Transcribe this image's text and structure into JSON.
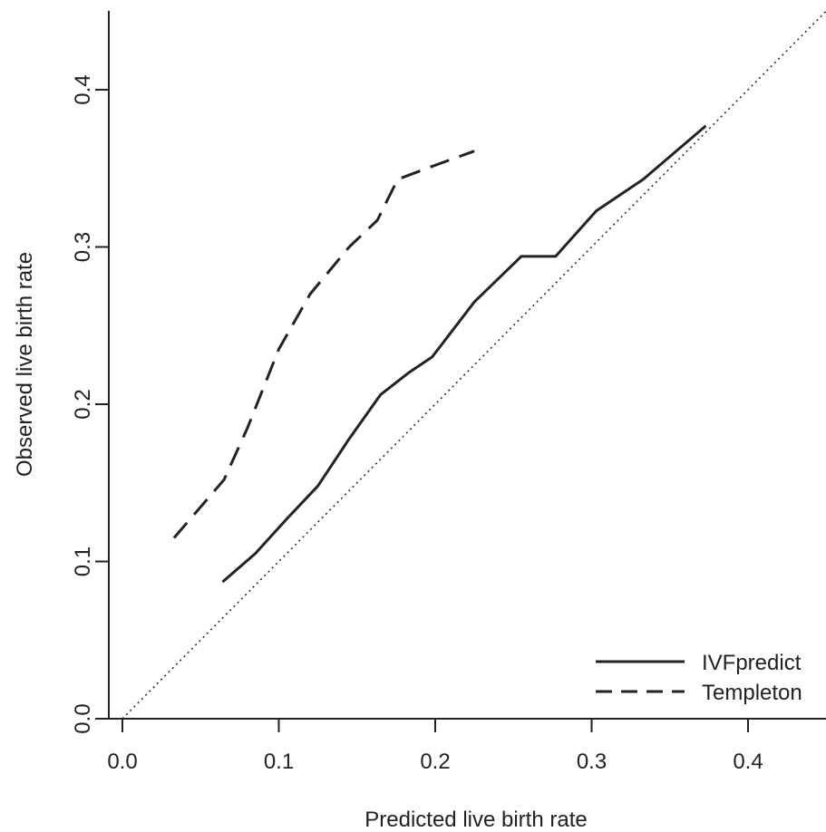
{
  "chart_data": {
    "type": "line",
    "title": "",
    "xlabel": "Predicted live birth rate",
    "ylabel": "Observed live birth rate",
    "xlim": [
      0,
      0.45
    ],
    "ylim": [
      0,
      0.45
    ],
    "xticks": [
      "0.0",
      "0.1",
      "0.2",
      "0.3",
      "0.4"
    ],
    "yticks": [
      "0.0",
      "0.1",
      "0.2",
      "0.3",
      "0.4"
    ],
    "legend_position": "bottom-right",
    "reference_line": {
      "style": "dotted",
      "from": [
        0,
        0
      ],
      "to": [
        0.45,
        0.45
      ]
    },
    "series": [
      {
        "name": "IVFpredict",
        "style": "solid",
        "color": "#222222",
        "x": [
          0.064,
          0.085,
          0.105,
          0.125,
          0.145,
          0.165,
          0.183,
          0.198,
          0.225,
          0.255,
          0.277,
          0.303,
          0.333,
          0.373
        ],
        "y": [
          0.087,
          0.105,
          0.127,
          0.148,
          0.178,
          0.206,
          0.22,
          0.23,
          0.265,
          0.294,
          0.294,
          0.323,
          0.343,
          0.377
        ]
      },
      {
        "name": "Templeton",
        "style": "dashed",
        "color": "#222222",
        "x": [
          0.033,
          0.065,
          0.08,
          0.1,
          0.12,
          0.145,
          0.163,
          0.176,
          0.2,
          0.225
        ],
        "y": [
          0.115,
          0.152,
          0.185,
          0.235,
          0.27,
          0.3,
          0.317,
          0.343,
          0.352,
          0.361
        ]
      }
    ]
  }
}
